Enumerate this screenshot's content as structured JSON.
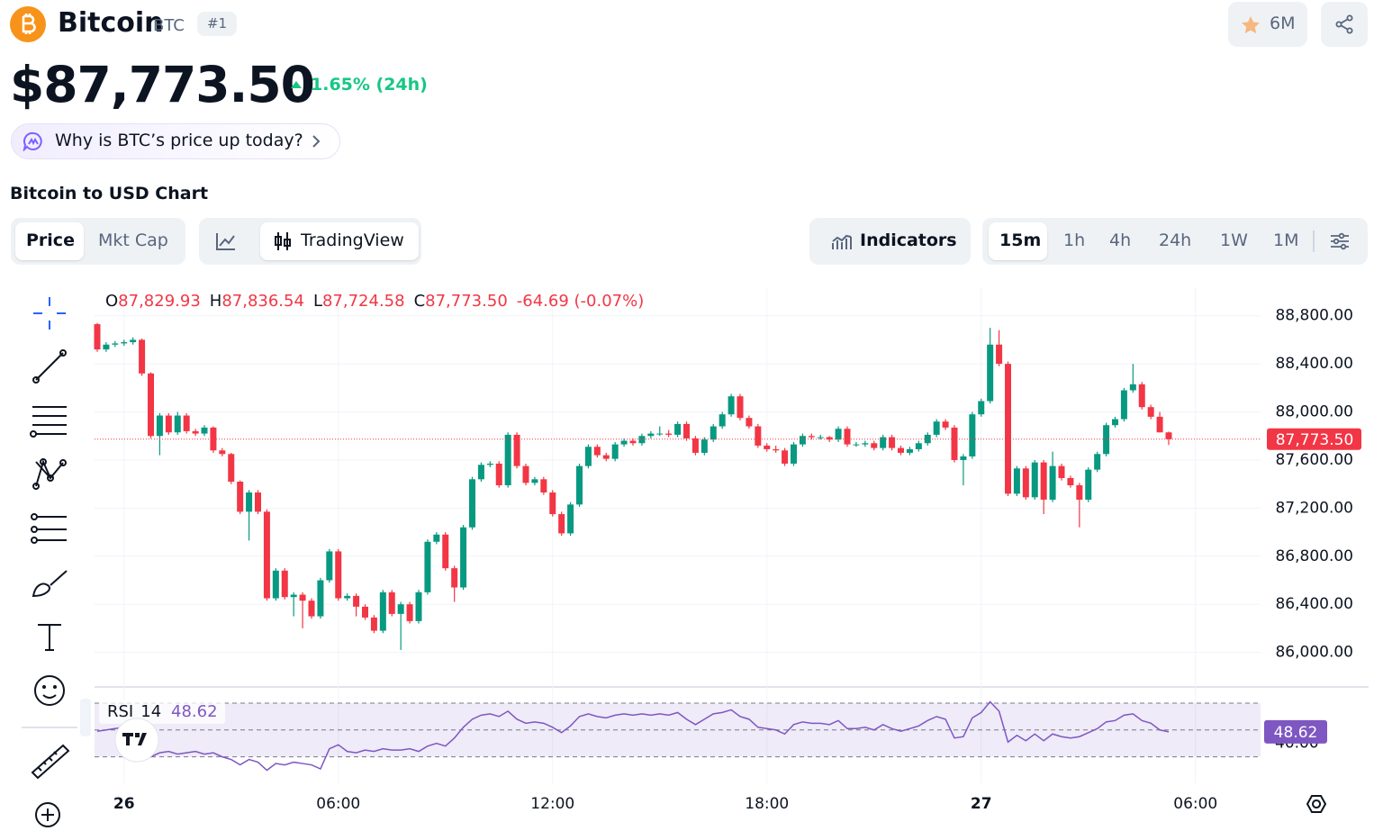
{
  "header": {
    "name": "Bitcoin",
    "symbol": "BTC",
    "rank": "#1",
    "watchlist": "6M",
    "price": "$87,773.50",
    "change": "1.65% (24h)",
    "prompt": "Why is BTC’s price up today?"
  },
  "section_title": "Bitcoin to USD Chart",
  "tabs": {
    "data": [
      "Price",
      "Mkt Cap"
    ],
    "view": "TradingView",
    "indicators": "Indicators",
    "intervals": [
      "15m",
      "1h",
      "4h",
      "24h",
      "1W",
      "1M"
    ]
  },
  "chart_data": {
    "type": "candlestick",
    "up_color": "#089981",
    "down_color": "#f23645",
    "ylim": [
      85720,
      89030
    ],
    "yticks": [
      {
        "value": 88800,
        "label": "88,800.00"
      },
      {
        "value": 88400,
        "label": "88,400.00"
      },
      {
        "value": 88000,
        "label": "88,000.00"
      },
      {
        "value": 87600,
        "label": "87,600.00"
      },
      {
        "value": 87200,
        "label": "87,200.00"
      },
      {
        "value": 86800,
        "label": "86,800.00"
      },
      {
        "value": 86400,
        "label": "86,400.00"
      },
      {
        "value": 86000,
        "label": "86,000.00"
      }
    ],
    "grid": true,
    "xtick_labels": [
      "26",
      "06:00",
      "12:00",
      "18:00",
      "27",
      "06:00"
    ],
    "ohlc_keys": [
      "O",
      "H",
      "L",
      "C"
    ],
    "ohlc_labels": [
      "87,829.93",
      "87,836.54",
      "87,724.58",
      "87,773.50"
    ],
    "change_label": "-64.69 (-0.07%)",
    "last_price_label": "87,773.50",
    "candles": [
      [
        88730,
        88740,
        88500,
        88520
      ],
      [
        88520,
        88580,
        88500,
        88560
      ],
      [
        88560,
        88590,
        88540,
        88570
      ],
      [
        88570,
        88600,
        88550,
        88580
      ],
      [
        88580,
        88620,
        88560,
        88600
      ],
      [
        88600,
        88610,
        88300,
        88320
      ],
      [
        88320,
        88330,
        87780,
        87800
      ],
      [
        87800,
        87990,
        87640,
        87970
      ],
      [
        87970,
        87990,
        87810,
        87830
      ],
      [
        87830,
        88000,
        87810,
        87970
      ],
      [
        87970,
        87990,
        87820,
        87840
      ],
      [
        87840,
        87860,
        87800,
        87820
      ],
      [
        87820,
        87890,
        87800,
        87870
      ],
      [
        87870,
        87880,
        87660,
        87680
      ],
      [
        87680,
        87700,
        87630,
        87650
      ],
      [
        87650,
        87660,
        87400,
        87420
      ],
      [
        87420,
        87430,
        87150,
        87170
      ],
      [
        87170,
        87350,
        86930,
        87330
      ],
      [
        87330,
        87350,
        87150,
        87170
      ],
      [
        87170,
        87190,
        86430,
        86450
      ],
      [
        86450,
        86700,
        86430,
        86680
      ],
      [
        86680,
        86700,
        86440,
        86460
      ],
      [
        86460,
        86500,
        86300,
        86480
      ],
      [
        86480,
        86500,
        86200,
        86430
      ],
      [
        86430,
        86450,
        86280,
        86300
      ],
      [
        86300,
        86620,
        86280,
        86600
      ],
      [
        86600,
        86860,
        86580,
        86840
      ],
      [
        86840,
        86860,
        86430,
        86450
      ],
      [
        86450,
        86490,
        86430,
        86470
      ],
      [
        86470,
        86490,
        86300,
        86380
      ],
      [
        86380,
        86400,
        86270,
        86290
      ],
      [
        86290,
        86310,
        86160,
        86180
      ],
      [
        86180,
        86520,
        86160,
        86500
      ],
      [
        86500,
        86520,
        86300,
        86320
      ],
      [
        86320,
        86420,
        86020,
        86400
      ],
      [
        86400,
        86420,
        86240,
        86260
      ],
      [
        86260,
        86520,
        86240,
        86500
      ],
      [
        86500,
        86940,
        86480,
        86920
      ],
      [
        86920,
        87000,
        86900,
        86980
      ],
      [
        86980,
        87000,
        86680,
        86700
      ],
      [
        86700,
        86720,
        86420,
        86540
      ],
      [
        86540,
        87060,
        86520,
        87040
      ],
      [
        87040,
        87460,
        87020,
        87440
      ],
      [
        87440,
        87580,
        87420,
        87560
      ],
      [
        87560,
        87590,
        87540,
        87570
      ],
      [
        87570,
        87590,
        87370,
        87390
      ],
      [
        87390,
        87830,
        87370,
        87810
      ],
      [
        87810,
        87830,
        87530,
        87550
      ],
      [
        87550,
        87570,
        87390,
        87410
      ],
      [
        87410,
        87460,
        87390,
        87440
      ],
      [
        87440,
        87460,
        87310,
        87330
      ],
      [
        87330,
        87350,
        87130,
        87150
      ],
      [
        87150,
        87170,
        86970,
        86990
      ],
      [
        86990,
        87250,
        86970,
        87230
      ],
      [
        87230,
        87570,
        87210,
        87550
      ],
      [
        87550,
        87730,
        87530,
        87710
      ],
      [
        87710,
        87730,
        87620,
        87640
      ],
      [
        87640,
        87660,
        87590,
        87610
      ],
      [
        87610,
        87750,
        87590,
        87730
      ],
      [
        87730,
        87780,
        87710,
        87760
      ],
      [
        87760,
        87780,
        87720,
        87740
      ],
      [
        87740,
        87820,
        87720,
        87800
      ],
      [
        87800,
        87840,
        87780,
        87820
      ],
      [
        87820,
        87880,
        87800,
        87820
      ],
      [
        87820,
        87850,
        87790,
        87810
      ],
      [
        87810,
        87920,
        87790,
        87900
      ],
      [
        87900,
        87920,
        87760,
        87780
      ],
      [
        87780,
        87800,
        87640,
        87660
      ],
      [
        87660,
        87790,
        87640,
        87770
      ],
      [
        87770,
        87900,
        87750,
        87880
      ],
      [
        87880,
        88000,
        87860,
        87980
      ],
      [
        87980,
        88150,
        87960,
        88130
      ],
      [
        88130,
        88150,
        87930,
        87950
      ],
      [
        87950,
        87970,
        87860,
        87880
      ],
      [
        87880,
        87900,
        87700,
        87720
      ],
      [
        87720,
        87740,
        87670,
        87690
      ],
      [
        87690,
        87720,
        87660,
        87680
      ],
      [
        87680,
        87700,
        87550,
        87570
      ],
      [
        87570,
        87750,
        87550,
        87730
      ],
      [
        87730,
        87820,
        87710,
        87800
      ],
      [
        87800,
        87820,
        87770,
        87790
      ],
      [
        87790,
        87810,
        87770,
        87790
      ],
      [
        87790,
        87800,
        87750,
        87770
      ],
      [
        87770,
        87880,
        87750,
        87860
      ],
      [
        87860,
        87880,
        87710,
        87730
      ],
      [
        87730,
        87750,
        87710,
        87730
      ],
      [
        87730,
        87760,
        87710,
        87740
      ],
      [
        87740,
        87760,
        87680,
        87700
      ],
      [
        87700,
        87810,
        87680,
        87790
      ],
      [
        87790,
        87810,
        87680,
        87700
      ],
      [
        87700,
        87720,
        87640,
        87660
      ],
      [
        87660,
        87710,
        87640,
        87690
      ],
      [
        87690,
        87760,
        87670,
        87740
      ],
      [
        87740,
        87830,
        87720,
        87810
      ],
      [
        87810,
        87940,
        87790,
        87920
      ],
      [
        87920,
        87940,
        87850,
        87870
      ],
      [
        87870,
        87890,
        87580,
        87600
      ],
      [
        87600,
        87650,
        87390,
        87630
      ],
      [
        87630,
        88000,
        87610,
        87980
      ],
      [
        87980,
        88110,
        87960,
        88090
      ],
      [
        88090,
        88700,
        88070,
        88560
      ],
      [
        88560,
        88680,
        88380,
        88400
      ],
      [
        88400,
        88420,
        87300,
        87320
      ],
      [
        87320,
        87550,
        87300,
        87530
      ],
      [
        87530,
        87550,
        87270,
        87290
      ],
      [
        87290,
        87600,
        87270,
        87580
      ],
      [
        87580,
        87600,
        87150,
        87270
      ],
      [
        87270,
        87670,
        87250,
        87550
      ],
      [
        87550,
        87570,
        87430,
        87450
      ],
      [
        87450,
        87470,
        87370,
        87390
      ],
      [
        87390,
        87410,
        87040,
        87270
      ],
      [
        87270,
        87540,
        87250,
        87520
      ],
      [
        87520,
        87670,
        87500,
        87650
      ],
      [
        87650,
        87910,
        87630,
        87890
      ],
      [
        87890,
        87960,
        87870,
        87940
      ],
      [
        87940,
        88200,
        87920,
        88180
      ],
      [
        88180,
        88400,
        88160,
        88230
      ],
      [
        88230,
        88250,
        88020,
        88040
      ],
      [
        88040,
        88060,
        87940,
        87960
      ],
      [
        87960,
        88000,
        87830,
        87830
      ],
      [
        87829.93,
        87836.54,
        87724.58,
        87773.5
      ]
    ],
    "rsi": {
      "name": "RSI",
      "period": "14",
      "color": "#7e57c2",
      "current": 48.62,
      "ylim": [
        17,
        76
      ],
      "levels": [
        30,
        50,
        70
      ],
      "yticks": [
        {
          "value": 40,
          "label": "40.00"
        }
      ],
      "values": [
        49,
        50,
        51,
        52,
        53,
        52,
        30,
        33,
        34,
        32,
        33,
        34,
        32,
        33,
        30,
        28,
        24,
        28,
        26,
        20,
        25,
        24,
        26,
        25,
        24,
        21,
        36,
        39,
        34,
        33,
        35,
        34,
        36,
        35,
        35,
        36,
        34,
        38,
        40,
        38,
        44,
        52,
        58,
        61,
        62,
        60,
        64,
        58,
        55,
        56,
        55,
        52,
        48,
        53,
        60,
        62,
        60,
        59,
        61,
        62,
        61,
        62,
        61,
        62,
        61,
        63,
        58,
        54,
        58,
        62,
        63,
        65,
        60,
        58,
        52,
        51,
        50,
        47,
        54,
        56,
        55,
        55,
        54,
        57,
        51,
        51,
        52,
        50,
        54,
        51,
        49,
        51,
        53,
        57,
        60,
        58,
        44,
        45,
        59,
        63,
        71,
        64,
        41,
        46,
        42,
        47,
        42,
        47,
        45,
        44,
        45,
        48,
        51,
        56,
        57,
        61,
        62,
        57,
        55,
        50,
        48.62
      ]
    }
  }
}
